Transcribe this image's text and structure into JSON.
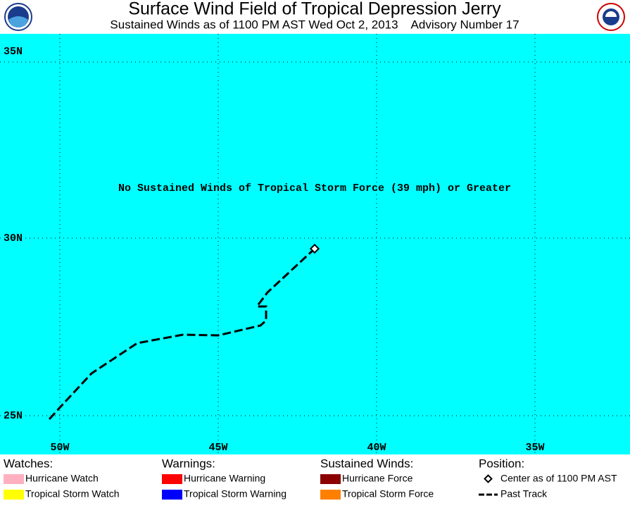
{
  "header": {
    "title": "Surface Wind Field of Tropical Depression Jerry",
    "subtitle": "Sustained Winds as of 1100 PM AST Wed Oct 2, 2013    Advisory Number 17"
  },
  "map": {
    "lat_labels": [
      "35N",
      "30N",
      "25N"
    ],
    "lon_labels": [
      "50W",
      "45W",
      "40W",
      "35W"
    ],
    "message": "No Sustained Winds of Tropical Storm Force (39 mph) or Greater"
  },
  "legend": [
    {
      "heading": "Watches:",
      "items": [
        {
          "label": "Hurricane Watch",
          "color": "#ffb0c0"
        },
        {
          "label": "Tropical Storm Watch",
          "color": "#ffff00"
        }
      ]
    },
    {
      "heading": "Warnings:",
      "items": [
        {
          "label": "Hurricane Warning",
          "color": "#ff0000"
        },
        {
          "label": "Tropical Storm Warning",
          "color": "#0000ff"
        }
      ]
    },
    {
      "heading": "Sustained Winds:",
      "items": [
        {
          "label": "Hurricane Force",
          "color": "#8b0000"
        },
        {
          "label": "Tropical Storm Force",
          "color": "#ff8000"
        }
      ]
    },
    {
      "heading": "Position:",
      "items": [
        {
          "label": "Center as of 1100 PM AST",
          "symbol": "diamond"
        },
        {
          "label": "Past Track",
          "symbol": "dash"
        }
      ]
    }
  ]
}
